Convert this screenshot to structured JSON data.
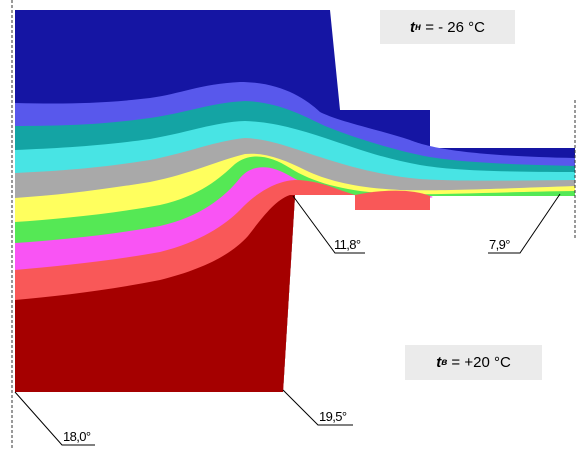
{
  "outdoor_label": {
    "symbol": "t",
    "subscript": "н",
    "equals": "=",
    "value": "- 26 °C"
  },
  "indoor_label": {
    "symbol": "t",
    "subscript": "в",
    "equals": "=",
    "value": "+20 °C"
  },
  "callouts": [
    {
      "id": "corner-left",
      "text": "18,0°"
    },
    {
      "id": "wall-base",
      "text": "19,5°"
    },
    {
      "id": "slab-corner",
      "text": "11,8°"
    },
    {
      "id": "slab-edge",
      "text": "7,9°"
    }
  ],
  "isotherm_colors": [
    "#1515a3",
    "#5858ec",
    "#14a4a4",
    "#48e4e4",
    "#a9a9a9",
    "#ffff5e",
    "#55e855",
    "#f954f4",
    "#f95858",
    "#a50000"
  ]
}
